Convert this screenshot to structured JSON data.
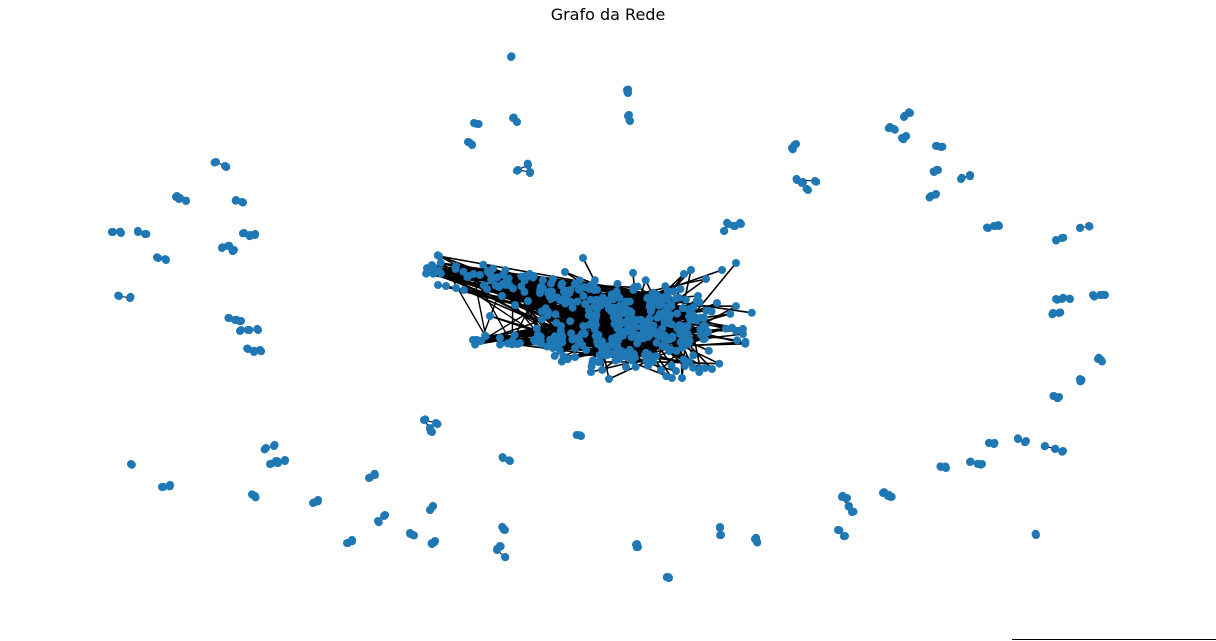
{
  "title": "Grafo da Rede",
  "colors": {
    "node": "#1f77b4",
    "edge": "#000000",
    "background": "#ffffff"
  }
}
